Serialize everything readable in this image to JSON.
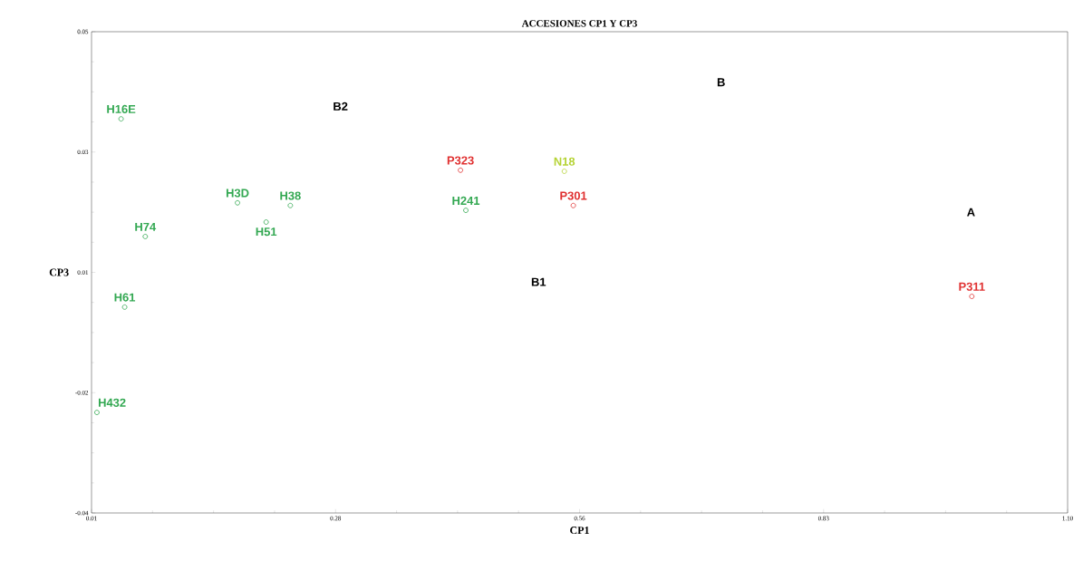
{
  "chart_data": {
    "type": "scatter",
    "title": "ACCESIONES CP1 Y CP3",
    "xlabel": "CP1",
    "ylabel": "CP3",
    "marker": "circle",
    "xlim": [
      0.01,
      1.1
    ],
    "xticks": [
      0.01,
      {
        "value": 0.2825,
        "label": "0.28"
      },
      {
        "value": 0.555,
        "label": "0.56"
      },
      {
        "value": 0.8275,
        "label": "0.83"
      },
      {
        "value": 1.1,
        "label": "1.10"
      }
    ],
    "ylim": [
      -0.04,
      0.05
    ],
    "yticks": [
      {
        "value": -0.04,
        "label": "-0.04"
      },
      {
        "value": -0.0175,
        "label": "-0.02"
      },
      {
        "value": 0.005,
        "label": "0.01"
      },
      {
        "value": 0.0275,
        "label": "0.03"
      },
      {
        "value": 0.05,
        "label": "0.05"
      }
    ],
    "series": [
      {
        "name": "H16E",
        "color": "#33a852",
        "x": [
          0.043
        ],
        "values": [
          0.0337
        ]
      },
      {
        "name": "H74",
        "color": "#33a852",
        "x": [
          0.07
        ],
        "values": [
          0.0117
        ]
      },
      {
        "name": "H61",
        "color": "#33a852",
        "x": [
          0.047
        ],
        "values": [
          -0.0015
        ]
      },
      {
        "name": "H432",
        "color": "#33a852",
        "x": [
          0.016
        ],
        "values": [
          -0.0212
        ]
      },
      {
        "name": "H3D",
        "color": "#33a852",
        "x": [
          0.173
        ],
        "values": [
          0.018
        ]
      },
      {
        "name": "H38",
        "color": "#33a852",
        "x": [
          0.232
        ],
        "values": [
          0.0175
        ]
      },
      {
        "name": "H51",
        "color": "#33a852",
        "x": [
          0.205
        ],
        "values": [
          0.0144
        ]
      },
      {
        "name": "P323",
        "color": "#e03030",
        "x": [
          0.422
        ],
        "values": [
          0.0241
        ]
      },
      {
        "name": "H241",
        "color": "#33a852",
        "x": [
          0.428
        ],
        "values": [
          0.0166
        ]
      },
      {
        "name": "N18",
        "color": "#b5d334",
        "x": [
          0.538
        ],
        "values": [
          0.0239
        ]
      },
      {
        "name": "P301",
        "color": "#e03030",
        "x": [
          0.548
        ],
        "values": [
          0.0175
        ]
      },
      {
        "name": "P311",
        "color": "#e03030",
        "x": [
          0.993
        ],
        "values": [
          0.0005
        ]
      }
    ],
    "annotations": [
      "B2",
      "B",
      "B1",
      "A"
    ]
  }
}
